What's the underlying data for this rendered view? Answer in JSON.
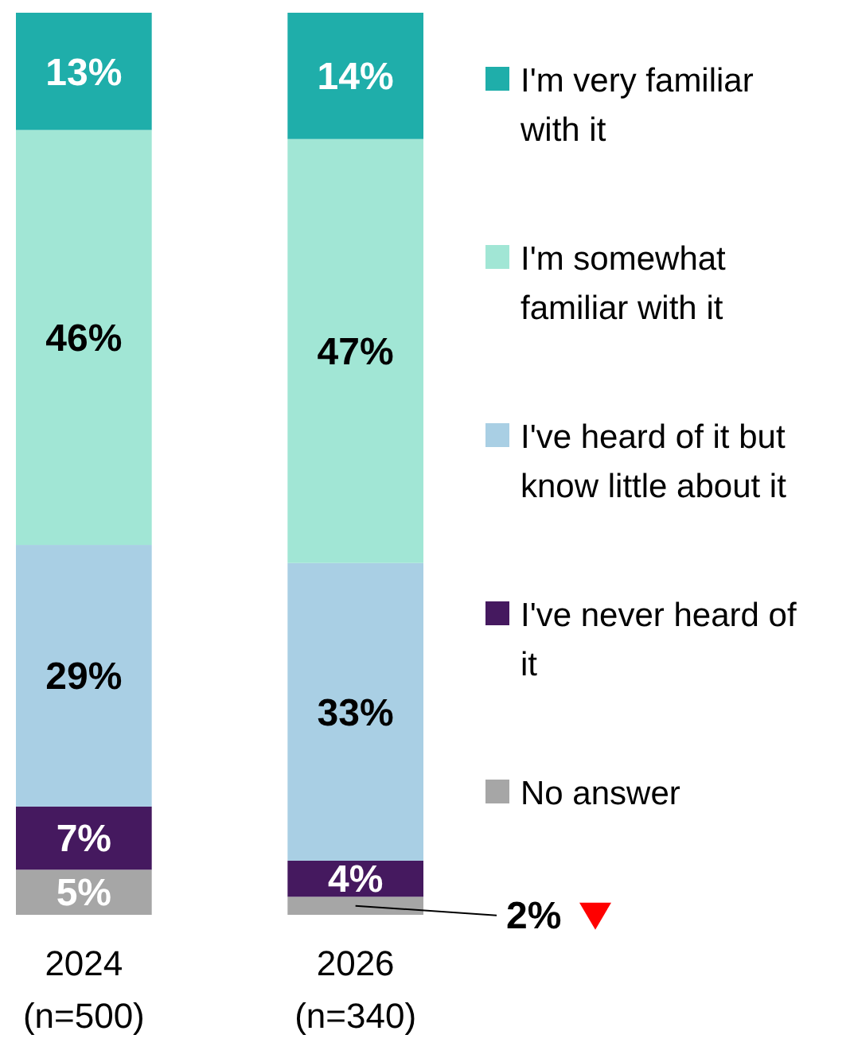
{
  "chart_data": {
    "type": "bar",
    "stacked": true,
    "categories": [
      "2024\n(n=500)",
      "2026\n(n=340)"
    ],
    "ylim": [
      0,
      100
    ],
    "tick_labels": "x",
    "legend": "right",
    "series": [
      {
        "name": "No answer",
        "color": "#a6a6a6",
        "values": [
          5,
          2
        ],
        "value_labels": [
          "5%",
          "2%"
        ]
      },
      {
        "name": "I've never heard of it",
        "color": "#45195f",
        "values": [
          7,
          4
        ],
        "value_labels": [
          "7%",
          "4%"
        ]
      },
      {
        "name": "I've heard of it but know little about it",
        "color": "#a9cfe4",
        "values": [
          29,
          33
        ],
        "value_labels": [
          "29%",
          "33%"
        ]
      },
      {
        "name": "I'm somewhat familiar with it",
        "color": "#a1e6d5",
        "values": [
          46,
          47
        ],
        "value_labels": [
          "46%",
          "47%"
        ]
      },
      {
        "name": "I'm very familiar with it",
        "color": "#1faeaa",
        "values": [
          13,
          14
        ],
        "value_labels": [
          "13%",
          "14%"
        ]
      }
    ]
  }
}
